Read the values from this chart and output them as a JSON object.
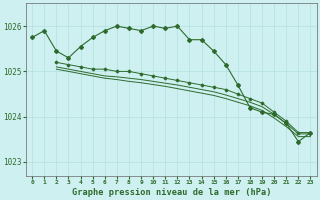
{
  "title": "Graphe pression niveau de la mer (hPa)",
  "background_color": "#cff0f0",
  "grid_color": "#b8e2e2",
  "line_color": "#2d6b2d",
  "ylim": [
    1022.7,
    1026.5
  ],
  "yticks": [
    1023,
    1024,
    1025,
    1026
  ],
  "xlim": [
    -0.5,
    23.5
  ],
  "xticks": [
    0,
    1,
    2,
    3,
    4,
    5,
    6,
    7,
    8,
    9,
    10,
    11,
    12,
    13,
    14,
    15,
    16,
    17,
    18,
    19,
    20,
    21,
    22,
    23
  ],
  "series_main": {
    "x": [
      0,
      1,
      2,
      3,
      4,
      5,
      6,
      7,
      8,
      9,
      10,
      11,
      12,
      13,
      14,
      15,
      16,
      17,
      18,
      19,
      20,
      21,
      22,
      23
    ],
    "y": [
      1025.75,
      1025.9,
      1025.45,
      1025.3,
      1025.55,
      1025.75,
      1025.9,
      1026.0,
      1025.95,
      1025.9,
      1026.0,
      1025.95,
      1026.0,
      1025.7,
      1025.7,
      1025.45,
      1025.15,
      1024.7,
      1024.2,
      1024.1,
      1024.05,
      1023.85,
      1023.45,
      1023.65
    ]
  },
  "series_trend1": {
    "x": [
      2,
      3,
      4,
      5,
      6,
      7,
      8,
      9,
      10,
      11,
      12,
      13,
      14,
      15,
      16,
      17,
      18,
      19,
      20,
      21,
      22,
      23
    ],
    "y": [
      1025.2,
      1025.15,
      1025.1,
      1025.05,
      1025.05,
      1025.0,
      1025.0,
      1024.95,
      1024.9,
      1024.85,
      1024.8,
      1024.75,
      1024.7,
      1024.65,
      1024.6,
      1024.5,
      1024.4,
      1024.3,
      1024.1,
      1023.9,
      1023.65,
      1023.65
    ]
  },
  "series_trend2": {
    "x": [
      2,
      3,
      4,
      5,
      6,
      7,
      8,
      9,
      10,
      11,
      12,
      13,
      14,
      15,
      16,
      17,
      18,
      19,
      20,
      21,
      22,
      23
    ],
    "y": [
      1025.1,
      1025.05,
      1025.0,
      1024.95,
      1024.9,
      1024.88,
      1024.85,
      1024.82,
      1024.78,
      1024.74,
      1024.7,
      1024.65,
      1024.6,
      1024.55,
      1024.48,
      1024.4,
      1024.32,
      1024.22,
      1024.05,
      1023.85,
      1023.62,
      1023.62
    ]
  },
  "series_trend3": {
    "x": [
      2,
      3,
      4,
      5,
      6,
      7,
      8,
      9,
      10,
      11,
      12,
      13,
      14,
      15,
      16,
      17,
      18,
      19,
      20,
      21,
      22,
      23
    ],
    "y": [
      1025.05,
      1025.0,
      1024.95,
      1024.9,
      1024.85,
      1024.82,
      1024.78,
      1024.75,
      1024.71,
      1024.67,
      1024.62,
      1024.57,
      1024.52,
      1024.47,
      1024.4,
      1024.32,
      1024.24,
      1024.14,
      1023.97,
      1023.78,
      1023.56,
      1023.56
    ]
  }
}
